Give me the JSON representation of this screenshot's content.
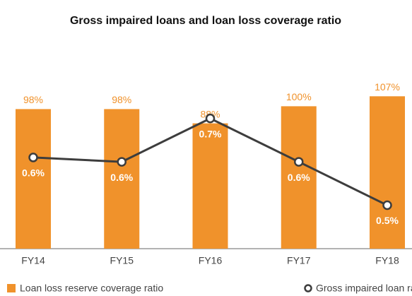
{
  "chart_data": {
    "type": "bar-line",
    "title": "Gross impaired loans and loan loss coverage ratio",
    "categories": [
      "FY14",
      "FY15",
      "FY16",
      "FY17",
      "FY18"
    ],
    "series": [
      {
        "name": "Loan loss reserve coverage ratio",
        "type": "bar",
        "color": "#f0922b",
        "values": [
          98,
          98,
          88,
          100,
          107
        ],
        "value_labels": [
          "98%",
          "98%",
          "88%",
          "100%",
          "107%"
        ]
      },
      {
        "name": "Gross impaired loan ratio",
        "type": "line",
        "axis": "y2",
        "color": "#3d3d3d",
        "values": [
          0.61,
          0.6,
          0.7,
          0.6,
          0.5
        ],
        "value_labels": [
          "0.6%",
          "0.6%",
          "0.7%",
          "0.6%",
          "0.5%"
        ]
      }
    ],
    "ylim": [
      0,
      125
    ],
    "y2lim": [
      0.4,
      0.81
    ]
  }
}
